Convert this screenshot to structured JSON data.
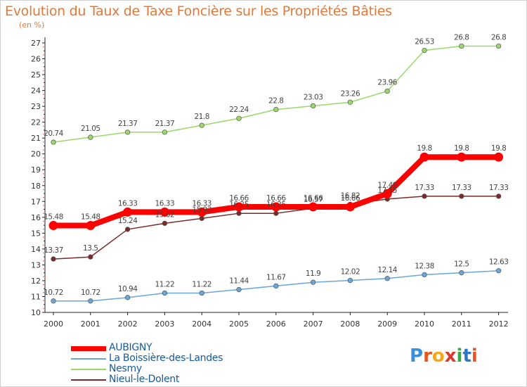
{
  "title": "Evolution du Taux de Taxe Foncière sur les Propriétés Bâties",
  "unit": "(en %)",
  "logo": {
    "text": "Proxiti",
    "letter_colors": [
      "#3a8fd6",
      "#e8541a",
      "#f4a81c",
      "#d93a2e",
      "#3aa84a",
      "#2e78c8",
      "#e8541a"
    ]
  },
  "chart_data": {
    "type": "line",
    "title": "Evolution du Taux de Taxe Foncière sur les Propriétés Bâties",
    "ylabel": "(en %)",
    "xlabel": "",
    "x": [
      "2000",
      "2001",
      "2002",
      "2003",
      "2004",
      "2005",
      "2006",
      "2007",
      "2008",
      "2009",
      "2010",
      "2011",
      "2012"
    ],
    "ylim": [
      10,
      27
    ],
    "yticks": [
      "10",
      "11",
      "12",
      "13",
      "14",
      "15",
      "16",
      "17",
      "18",
      "19",
      "20",
      "21",
      "22",
      "23",
      "24",
      "25",
      "26",
      "27"
    ],
    "grid": false,
    "legend": "bottom-left",
    "series": [
      {
        "name": "AUBIGNY",
        "color": "#ff0000",
        "values": [
          15.48,
          15.48,
          16.33,
          16.33,
          16.33,
          16.66,
          16.66,
          16.66,
          16.66,
          17.49,
          19.8,
          19.8,
          19.8
        ],
        "labels": [
          "15.48",
          "15.48",
          "16.33",
          "16.33",
          "16.33",
          "16.66",
          "16.66",
          "16.66",
          "16.66",
          "17.49",
          "19.8",
          "19.8",
          "19.8"
        ]
      },
      {
        "name": "La Boissière-des-Landes",
        "color": "#6aa6d8",
        "values": [
          10.72,
          10.72,
          10.94,
          11.22,
          11.22,
          11.44,
          11.67,
          11.9,
          12.02,
          12.14,
          12.38,
          12.5,
          12.63
        ],
        "labels": [
          "10.72",
          "10.72",
          "10.94",
          "11.22",
          "11.22",
          "11.44",
          "11.67",
          "11.9",
          "12.02",
          "12.14",
          "12.38",
          "12.5",
          "12.63"
        ]
      },
      {
        "name": "Nesmy",
        "color": "#9ad86a",
        "values": [
          20.74,
          21.05,
          21.37,
          21.37,
          21.8,
          22.24,
          22.8,
          23.03,
          23.26,
          23.96,
          26.53,
          26.8,
          26.8
        ],
        "labels": [
          "20.74",
          "21.05",
          "21.37",
          "21.37",
          "21.8",
          "22.24",
          "22.8",
          "23.03",
          "23.26",
          "23.96",
          "26.53",
          "26.8",
          "26.8"
        ]
      },
      {
        "name": "Nieul-le-Dolent",
        "color": "#7a2a2a",
        "values": [
          13.37,
          13.5,
          15.24,
          15.62,
          15.93,
          16.25,
          16.25,
          16.57,
          16.82,
          17.15,
          17.33,
          17.33,
          17.33
        ],
        "labels": [
          "13.37",
          "13.5",
          "15.24",
          "15.62",
          "15.93",
          "16.25",
          "16.25",
          "16.57",
          "16.82",
          "17.15",
          "17.33",
          "17.33",
          "17.33"
        ]
      }
    ]
  }
}
